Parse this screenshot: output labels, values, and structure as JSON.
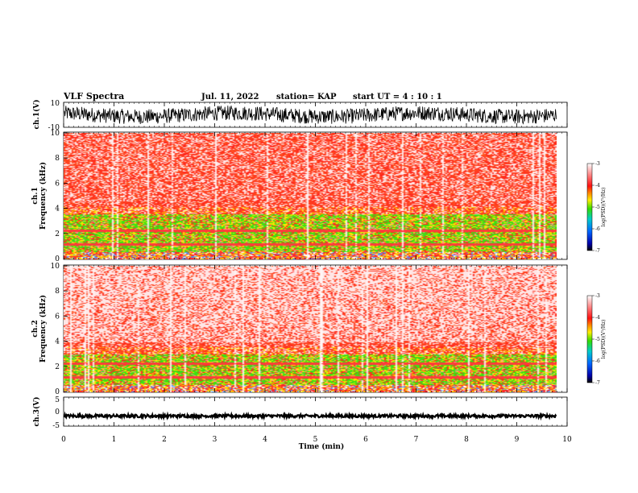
{
  "header": {
    "title": "VLF Spectra",
    "date": "Jul. 11, 2022",
    "station": "station= KAP",
    "start": "start  UT =  4 : 10 : 1"
  },
  "colors": {
    "spec_low": "#ffffff",
    "spec_mid": "#ff2a2a",
    "spec_high": "#33e000",
    "spec_peak": "#ffee00",
    "trace": "#000000"
  },
  "chart_data": [
    {
      "type": "line",
      "name": "ch1-waveform",
      "ylabel": "ch.1(V)",
      "ylim": [
        -10,
        10
      ],
      "yticks": [
        "10",
        "-10"
      ],
      "xlim": [
        0,
        10
      ],
      "description_values": {
        "mean": 0,
        "amplitude": 6
      }
    },
    {
      "type": "heatmap",
      "name": "ch1-spectrogram",
      "ylabel": "ch.1\nFrequency (kHz)",
      "ylim": [
        0,
        10
      ],
      "yticks": [
        "0",
        "2",
        "4",
        "6",
        "8",
        "10"
      ],
      "xlim": [
        0,
        9.8
      ],
      "bands": [
        {
          "from_khz": 0.6,
          "to_khz": 3.6,
          "level": -4.8
        },
        {
          "from_khz": 3.6,
          "to_khz": 10,
          "level": -3.8
        }
      ],
      "colorbar": {
        "label": "log(PSD)(V²/Hz)",
        "ticks": [
          "-3",
          "-4",
          "-5",
          "-6",
          "-7"
        ],
        "range": [
          -7,
          -3
        ]
      }
    },
    {
      "type": "heatmap",
      "name": "ch2-spectrogram",
      "ylabel": "ch.2\nFrequency (kHz)",
      "ylim": [
        0,
        10
      ],
      "yticks": [
        "0",
        "2",
        "4",
        "6",
        "8",
        "10"
      ],
      "xlim": [
        0,
        9.8
      ],
      "bands": [
        {
          "from_khz": 0.6,
          "to_khz": 3.0,
          "level": -4.9
        },
        {
          "from_khz": 3.0,
          "to_khz": 10,
          "level": -3.5
        }
      ],
      "colorbar": {
        "label": "log(PSD)(V²/Hz)",
        "ticks": [
          "-3",
          "-4",
          "-5",
          "-6",
          "-7"
        ],
        "range": [
          -7,
          -3
        ]
      }
    },
    {
      "type": "line",
      "name": "ch3-waveform",
      "ylabel": "ch.3(V)",
      "ylim": [
        -5,
        5
      ],
      "yticks": [
        "5",
        "0",
        "-5"
      ],
      "xlim": [
        0,
        10
      ],
      "description_values": {
        "mean": -1.5,
        "amplitude": 0.5
      }
    }
  ],
  "xaxis": {
    "label": "Time (min)",
    "ticks": [
      "0",
      "1",
      "2",
      "3",
      "4",
      "5",
      "6",
      "7",
      "8",
      "9",
      "10"
    ]
  }
}
